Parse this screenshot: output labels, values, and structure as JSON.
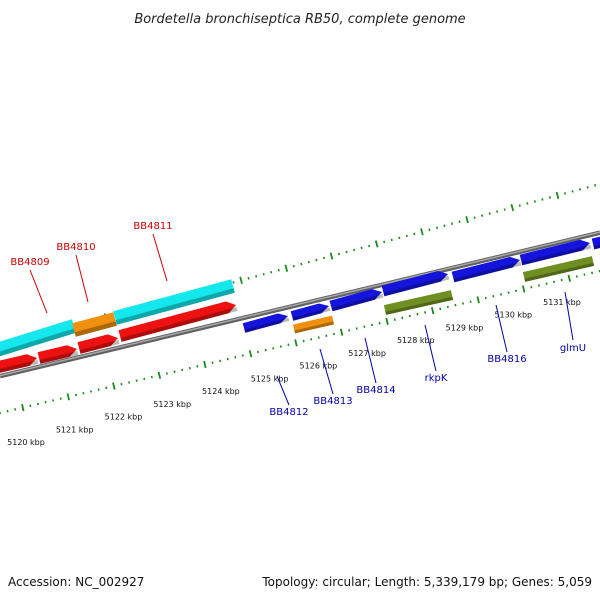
{
  "title": "Bordetella bronchiseptica RB50, complete genome",
  "footer": {
    "accession": "Accession: NC_002927",
    "summary": "Topology: circular; Length: 5,339,179 bp; Genes: 5,059"
  },
  "colors": {
    "tick": "#1b8a1b",
    "backbone": "#888888",
    "cyan": "#14e8ec",
    "orange": "#f0900e",
    "red": "#ee1111",
    "blue": "#1414dd",
    "olive": "#6f8f22",
    "label_red": "#cc0000",
    "label_blue": "#0000aa"
  },
  "scale_labels": [
    "5120 kbp",
    "5121 kbp",
    "5122 kbp",
    "5123 kbp",
    "5124 kbp",
    "5125 kbp",
    "5126 kbp",
    "5127 kbp",
    "5128 kbp",
    "5129 kbp",
    "5130 kbp",
    "5131 kbp"
  ],
  "genes": [
    {
      "label": "",
      "color": "cyan",
      "shape": "bar"
    },
    {
      "label": "BB4809",
      "color": "cyan",
      "shape": "bar"
    },
    {
      "label": "BB4810",
      "color": "orange",
      "shape": "bar"
    },
    {
      "label": "BB4811",
      "color": "cyan",
      "shape": "bar"
    },
    {
      "label": "",
      "color": "red",
      "shape": "arrow"
    },
    {
      "label": "",
      "color": "red",
      "shape": "arrow"
    },
    {
      "label": "",
      "color": "red",
      "shape": "arrow"
    },
    {
      "label": "",
      "color": "red",
      "shape": "arrow"
    },
    {
      "label": "BB4812",
      "color": "blue",
      "shape": "arrow"
    },
    {
      "label": "",
      "color": "blue",
      "shape": "arrow"
    },
    {
      "label": "BB4813",
      "color": "orange",
      "shape": "bar"
    },
    {
      "label": "BB4814",
      "color": "blue",
      "shape": "arrow"
    },
    {
      "label": "rkpK",
      "color": "blue",
      "shape": "arrow"
    },
    {
      "label": "",
      "color": "olive",
      "shape": "bar"
    },
    {
      "label": "",
      "color": "blue",
      "shape": "arrow"
    },
    {
      "label": "BB4816",
      "color": "blue",
      "shape": "arrow"
    },
    {
      "label": "glmU",
      "color": "olive",
      "shape": "bar"
    },
    {
      "label": "",
      "color": "blue",
      "shape": "arrow"
    }
  ]
}
